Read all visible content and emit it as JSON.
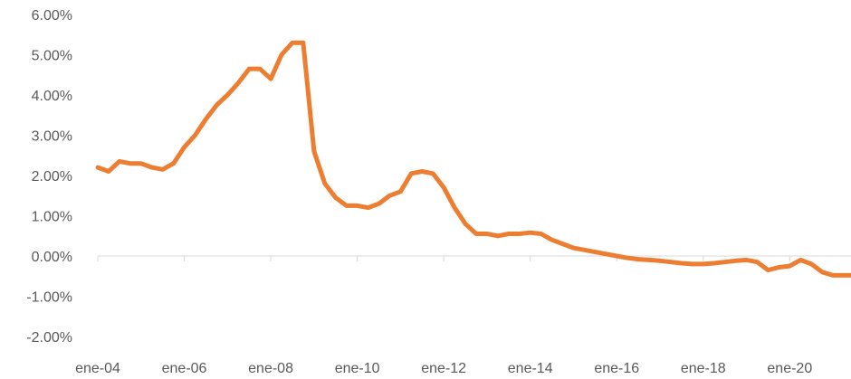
{
  "chart_data": {
    "type": "line",
    "title": "",
    "xlabel": "",
    "ylabel": "",
    "x_tick_labels": [
      "ene-04",
      "ene-06",
      "ene-08",
      "ene-10",
      "ene-12",
      "ene-14",
      "ene-16",
      "ene-18",
      "ene-20"
    ],
    "y_tick_labels": [
      "6.00%",
      "5.00%",
      "4.00%",
      "3.00%",
      "2.00%",
      "1.00%",
      "0.00%",
      "-1.00%",
      "-2.00%"
    ],
    "ylim": [
      -2.0,
      6.0
    ],
    "xlim": [
      "2004-01",
      "2021-06"
    ],
    "grid": false,
    "legend": "none",
    "line_color": "#ED7D31",
    "axis_color": "#D9D9D9",
    "series": [
      {
        "x": [
          "2004-01",
          "2004-04",
          "2004-07",
          "2004-10",
          "2005-01",
          "2005-04",
          "2005-07",
          "2005-10",
          "2006-01",
          "2006-04",
          "2006-07",
          "2006-10",
          "2007-01",
          "2007-04",
          "2007-07",
          "2007-10",
          "2008-01",
          "2008-04",
          "2008-07",
          "2008-10",
          "2009-01",
          "2009-04",
          "2009-07",
          "2009-10",
          "2010-01",
          "2010-04",
          "2010-07",
          "2010-10",
          "2011-01",
          "2011-04",
          "2011-07",
          "2011-10",
          "2012-01",
          "2012-04",
          "2012-07",
          "2012-10",
          "2013-01",
          "2013-04",
          "2013-07",
          "2013-10",
          "2014-01",
          "2014-04",
          "2014-07",
          "2014-10",
          "2015-01",
          "2015-04",
          "2015-07",
          "2015-10",
          "2016-01",
          "2016-04",
          "2016-07",
          "2016-10",
          "2017-01",
          "2017-04",
          "2017-07",
          "2017-10",
          "2018-01",
          "2018-04",
          "2018-07",
          "2018-10",
          "2019-01",
          "2019-04",
          "2019-07",
          "2019-10",
          "2020-01",
          "2020-04",
          "2020-07",
          "2020-10",
          "2021-01",
          "2021-04",
          "2021-06"
        ],
        "values": [
          2.2,
          2.1,
          2.35,
          2.3,
          2.3,
          2.2,
          2.15,
          2.3,
          2.7,
          3.0,
          3.4,
          3.75,
          4.0,
          4.3,
          4.65,
          4.65,
          4.4,
          5.0,
          5.3,
          5.3,
          2.6,
          1.8,
          1.45,
          1.25,
          1.25,
          1.2,
          1.3,
          1.5,
          1.6,
          2.05,
          2.1,
          2.05,
          1.7,
          1.2,
          0.8,
          0.55,
          0.55,
          0.5,
          0.55,
          0.55,
          0.58,
          0.55,
          0.4,
          0.3,
          0.2,
          0.15,
          0.1,
          0.05,
          0.0,
          -0.05,
          -0.08,
          -0.1,
          -0.12,
          -0.15,
          -0.18,
          -0.2,
          -0.2,
          -0.18,
          -0.15,
          -0.12,
          -0.1,
          -0.15,
          -0.35,
          -0.28,
          -0.25,
          -0.1,
          -0.2,
          -0.4,
          -0.48,
          -0.48,
          -0.48
        ]
      }
    ]
  }
}
